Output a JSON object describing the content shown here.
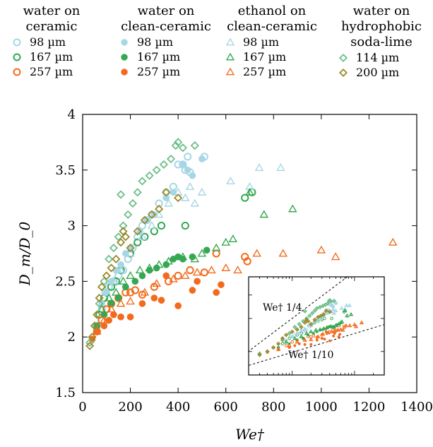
{
  "chart_data": {
    "type": "scatter",
    "xlabel": "We†",
    "ylabel": "D_m/D_0",
    "xlim": [
      0,
      1400
    ],
    "ylim": [
      1.5,
      4
    ],
    "xticks": [
      "0",
      "200",
      "400",
      "600",
      "800",
      "1000",
      "1200",
      "1400"
    ],
    "yticks": [
      "1.5",
      "2",
      "2.5",
      "3",
      "3.5",
      "4"
    ],
    "grid": false,
    "legend_groups": [
      {
        "title_lines": [
          "water on",
          "ceramic"
        ],
        "items": [
          {
            "label": "98 µm",
            "color": "#a6d7e6",
            "marker": "circle-open"
          },
          {
            "label": "167 µm",
            "color": "#36a852",
            "marker": "circle-open"
          },
          {
            "label": "257 µm",
            "color": "#f26b1d",
            "marker": "circle-open"
          }
        ]
      },
      {
        "title_lines": [
          "water on",
          "clean-ceramic"
        ],
        "items": [
          {
            "label": "98 µm",
            "color": "#a6d7e6",
            "marker": "circle-filled"
          },
          {
            "label": "167 µm",
            "color": "#36a852",
            "marker": "circle-filled"
          },
          {
            "label": "257 µm",
            "color": "#f26b1d",
            "marker": "circle-filled"
          }
        ]
      },
      {
        "title_lines": [
          "ethanol on",
          "clean-ceramic"
        ],
        "items": [
          {
            "label": "98 µm",
            "color": "#a6d7e6",
            "marker": "triangle-open"
          },
          {
            "label": "167 µm",
            "color": "#36a852",
            "marker": "triangle-open"
          },
          {
            "label": "257 µm",
            "color": "#f26b1d",
            "marker": "triangle-open"
          }
        ]
      },
      {
        "title_lines": [
          "water on",
          "hydrophobic",
          "soda-lime"
        ],
        "items": [
          {
            "label": "114 µm",
            "color": "#6dbf8a",
            "marker": "diamond-open"
          },
          {
            "label": "200 µm",
            "color": "#9a8a2a",
            "marker": "diamond-open"
          }
        ]
      }
    ],
    "series": [
      {
        "id": "wc98",
        "color": "#a6d7e6",
        "marker": "circle-open",
        "points": [
          [
            60,
            2.1
          ],
          [
            80,
            2.25
          ],
          [
            95,
            2.4
          ],
          [
            110,
            2.45
          ],
          [
            130,
            2.5
          ],
          [
            150,
            2.55
          ],
          [
            170,
            2.6
          ],
          [
            190,
            2.7
          ],
          [
            210,
            2.8
          ],
          [
            230,
            2.9
          ],
          [
            250,
            3.0
          ],
          [
            270,
            3.05
          ],
          [
            290,
            3.1
          ],
          [
            320,
            3.2
          ],
          [
            350,
            3.3
          ],
          [
            380,
            3.35
          ],
          [
            400,
            3.55
          ],
          [
            420,
            3.55
          ],
          [
            430,
            3.5
          ],
          [
            440,
            3.62
          ],
          [
            450,
            3.48
          ],
          [
            510,
            3.62
          ]
        ]
      },
      {
        "id": "wc167",
        "color": "#36a852",
        "marker": "circle-open",
        "points": [
          [
            70,
            2.2
          ],
          [
            90,
            2.35
          ],
          [
            120,
            2.45
          ],
          [
            140,
            2.5
          ],
          [
            160,
            2.6
          ],
          [
            200,
            2.75
          ],
          [
            230,
            2.85
          ],
          [
            260,
            2.9
          ],
          [
            300,
            2.95
          ],
          [
            330,
            3.0
          ],
          [
            430,
            3.0
          ],
          [
            680,
            3.25
          ],
          [
            710,
            3.3
          ]
        ]
      },
      {
        "id": "wc257",
        "color": "#f26b1d",
        "marker": "circle-open",
        "points": [
          [
            60,
            2.05
          ],
          [
            80,
            2.15
          ],
          [
            100,
            2.25
          ],
          [
            120,
            2.3
          ],
          [
            150,
            2.35
          ],
          [
            180,
            2.4
          ],
          [
            200,
            2.4
          ],
          [
            220,
            2.42
          ],
          [
            250,
            2.38
          ],
          [
            300,
            2.45
          ],
          [
            360,
            2.5
          ],
          [
            400,
            2.55
          ],
          [
            450,
            2.6
          ],
          [
            510,
            2.58
          ],
          [
            560,
            2.75
          ],
          [
            680,
            2.72
          ],
          [
            690,
            2.68
          ]
        ]
      },
      {
        "id": "wcc98",
        "color": "#a6d7e6",
        "marker": "circle-filled",
        "points": [
          [
            80,
            2.3
          ],
          [
            100,
            2.4
          ],
          [
            120,
            2.5
          ],
          [
            140,
            2.6
          ],
          [
            160,
            2.65
          ],
          [
            180,
            2.75
          ],
          [
            200,
            2.8
          ],
          [
            240,
            2.95
          ],
          [
            270,
            3.05
          ],
          [
            300,
            3.1
          ],
          [
            350,
            3.25
          ],
          [
            380,
            3.3
          ],
          [
            420,
            3.55
          ],
          [
            440,
            3.5
          ],
          [
            460,
            3.45
          ],
          [
            500,
            3.6
          ]
        ]
      },
      {
        "id": "wcc167",
        "color": "#36a852",
        "marker": "circle-filled",
        "points": [
          [
            60,
            2.1
          ],
          [
            90,
            2.2
          ],
          [
            120,
            2.3
          ],
          [
            150,
            2.35
          ],
          [
            180,
            2.45
          ],
          [
            220,
            2.5
          ],
          [
            250,
            2.55
          ],
          [
            280,
            2.6
          ],
          [
            310,
            2.62
          ],
          [
            350,
            2.65
          ],
          [
            380,
            2.7
          ],
          [
            400,
            2.72
          ],
          [
            420,
            2.7
          ],
          [
            460,
            2.72
          ],
          [
            520,
            2.78
          ]
        ]
      },
      {
        "id": "wcc257",
        "color": "#f26b1d",
        "marker": "circle-filled",
        "points": [
          [
            40,
            1.98
          ],
          [
            60,
            2.05
          ],
          [
            90,
            2.1
          ],
          [
            110,
            2.15
          ],
          [
            130,
            2.2
          ],
          [
            160,
            2.18
          ],
          [
            200,
            2.18
          ],
          [
            250,
            2.3
          ],
          [
            300,
            2.35
          ],
          [
            330,
            2.33
          ],
          [
            350,
            2.55
          ],
          [
            400,
            2.28
          ],
          [
            460,
            2.42
          ],
          [
            480,
            2.5
          ],
          [
            560,
            2.4
          ],
          [
            580,
            2.47
          ]
        ]
      },
      {
        "id": "ecc98",
        "color": "#a6d7e6",
        "marker": "triangle-open",
        "points": [
          [
            100,
            2.4
          ],
          [
            130,
            2.5
          ],
          [
            160,
            2.6
          ],
          [
            200,
            2.75
          ],
          [
            250,
            2.9
          ],
          [
            290,
            3.0
          ],
          [
            320,
            3.1
          ],
          [
            360,
            3.2
          ],
          [
            400,
            3.3
          ],
          [
            430,
            3.25
          ],
          [
            450,
            3.35
          ],
          [
            470,
            3.2
          ],
          [
            500,
            3.3
          ],
          [
            620,
            3.4
          ],
          [
            700,
            3.35
          ],
          [
            740,
            3.52
          ],
          [
            830,
            3.52
          ]
        ]
      },
      {
        "id": "ecc167",
        "color": "#36a852",
        "marker": "triangle-open",
        "points": [
          [
            80,
            2.25
          ],
          [
            110,
            2.35
          ],
          [
            140,
            2.4
          ],
          [
            170,
            2.5
          ],
          [
            200,
            2.55
          ],
          [
            240,
            2.6
          ],
          [
            280,
            2.62
          ],
          [
            320,
            2.65
          ],
          [
            360,
            2.68
          ],
          [
            420,
            2.72
          ],
          [
            470,
            2.7
          ],
          [
            500,
            2.75
          ],
          [
            560,
            2.8
          ],
          [
            600,
            2.85
          ],
          [
            630,
            2.88
          ],
          [
            700,
            3.3
          ],
          [
            760,
            3.1
          ],
          [
            880,
            3.15
          ]
        ]
      },
      {
        "id": "ecc257",
        "color": "#f26b1d",
        "marker": "triangle-open",
        "points": [
          [
            60,
            2.05
          ],
          [
            90,
            2.15
          ],
          [
            120,
            2.25
          ],
          [
            160,
            2.3
          ],
          [
            200,
            2.32
          ],
          [
            260,
            2.4
          ],
          [
            310,
            2.48
          ],
          [
            380,
            2.52
          ],
          [
            430,
            2.55
          ],
          [
            480,
            2.58
          ],
          [
            540,
            2.6
          ],
          [
            600,
            2.62
          ],
          [
            650,
            2.6
          ],
          [
            730,
            2.75
          ],
          [
            840,
            2.75
          ],
          [
            1000,
            2.78
          ],
          [
            1060,
            2.72
          ],
          [
            1300,
            2.85
          ]
        ]
      },
      {
        "id": "hs114",
        "color": "#6dbf8a",
        "marker": "diamond-open",
        "points": [
          [
            30,
            1.95
          ],
          [
            50,
            2.1
          ],
          [
            70,
            2.3
          ],
          [
            90,
            2.5
          ],
          [
            110,
            2.7
          ],
          [
            130,
            2.8
          ],
          [
            150,
            2.9
          ],
          [
            170,
            3.0
          ],
          [
            160,
            3.28
          ],
          [
            190,
            3.1
          ],
          [
            210,
            3.2
          ],
          [
            230,
            3.3
          ],
          [
            250,
            3.4
          ],
          [
            280,
            3.45
          ],
          [
            310,
            3.5
          ],
          [
            340,
            3.55
          ],
          [
            370,
            3.6
          ],
          [
            390,
            3.72
          ],
          [
            400,
            3.75
          ],
          [
            420,
            3.7
          ],
          [
            470,
            3.72
          ]
        ]
      },
      {
        "id": "hs200",
        "color": "#9a8a2a",
        "marker": "diamond-open",
        "points": [
          [
            30,
            1.92
          ],
          [
            40,
            2.0
          ],
          [
            50,
            2.1
          ],
          [
            60,
            2.2
          ],
          [
            70,
            2.35
          ],
          [
            80,
            2.45
          ],
          [
            100,
            2.55
          ],
          [
            120,
            2.62
          ],
          [
            140,
            2.7
          ],
          [
            160,
            2.85
          ],
          [
            170,
            2.95
          ],
          [
            180,
            2.9
          ],
          [
            200,
            2.8
          ],
          [
            230,
            2.95
          ],
          [
            260,
            3.05
          ],
          [
            290,
            3.1
          ],
          [
            320,
            3.15
          ],
          [
            350,
            3.3
          ],
          [
            400,
            3.25
          ]
        ]
      }
    ],
    "inset": {
      "xscale": "log",
      "yscale": "log",
      "annotations": [
        {
          "text": "We† 1/4"
        },
        {
          "text": "We† 1/10"
        }
      ]
    }
  }
}
